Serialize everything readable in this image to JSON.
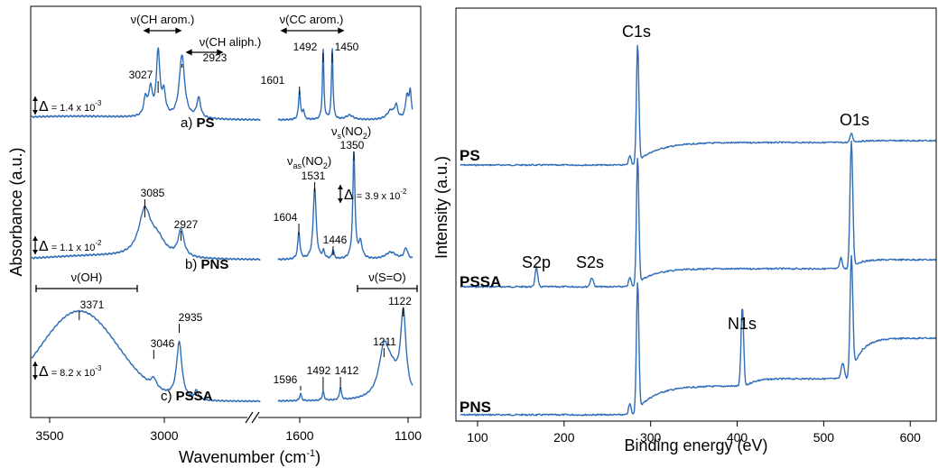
{
  "chart_data": [
    {
      "type": "line",
      "xlabel_main": "Wavenumber (cm",
      "xlabel_sup": "-1",
      "xlabel_end": ")",
      "ylabel": "Absorbance (a.u.)",
      "x_breaks": [
        [
          3700,
          2500
        ],
        [
          1700,
          1080
        ]
      ],
      "tick_labels": [
        "3500",
        "3000",
        "1600",
        "1100"
      ],
      "series": [
        {
          "name": "a) PS",
          "name_prefix": "a) ",
          "name_bold": "PS",
          "scale_pre": "= 1.4 x 10",
          "scale_exp": "-3",
          "peaks": [
            {
              "x": 3027,
              "label": "3027"
            },
            {
              "x": 2923,
              "label": "2923"
            },
            {
              "x": 1601,
              "label": "1601"
            },
            {
              "x": 1492,
              "label": "1492"
            },
            {
              "x": 1450,
              "label": "1450"
            }
          ]
        },
        {
          "name": "b) PNS",
          "name_prefix": "b) ",
          "name_bold": "PNS",
          "scale_pre": "= 1.1 x 10",
          "scale_exp": "-2",
          "peaks": [
            {
              "x": 3085,
              "label": "3085"
            },
            {
              "x": 2927,
              "label": "2927"
            },
            {
              "x": 1604,
              "label": "1604"
            },
            {
              "x": 1531,
              "label": "1531"
            },
            {
              "x": 1446,
              "label": "1446"
            },
            {
              "x": 1350,
              "label": "1350"
            }
          ]
        },
        {
          "name": "c) PSSA",
          "name_prefix": "c) ",
          "name_bold": "PSSA",
          "scale_pre": "= 8.2 x 10",
          "scale_exp": "-3",
          "peaks": [
            {
              "x": 3371,
              "label": "3371"
            },
            {
              "x": 3046,
              "label": "3046"
            },
            {
              "x": 2935,
              "label": "2935"
            },
            {
              "x": 1596,
              "label": "1596"
            },
            {
              "x": 1492,
              "label": "1492"
            },
            {
              "x": 1412,
              "label": "1412"
            },
            {
              "x": 1211,
              "label": "1211"
            },
            {
              "x": 1122,
              "label": "1122"
            }
          ]
        }
      ],
      "annotations": {
        "ch_arom": "ν(CH arom.)",
        "ch_aliph": "ν(CH aliph.)",
        "cc_arom": "ν(CC arom.)",
        "oh": "ν(OH)",
        "so": "ν(S=O)",
        "nas_v": "ν",
        "nas_sub": "as",
        "nas_rest": "(NO",
        "nas_sub2": "2",
        "nas_end": ")",
        "ns_v": "ν",
        "ns_sub": "s",
        "ns_rest": "(NO",
        "ns_sub2": "2",
        "ns_end": ")",
        "pns_extra_scale_pre": "= 3.9 x 10",
        "pns_extra_scale_exp": "-2",
        "delta": "Δ"
      }
    },
    {
      "type": "line",
      "xlabel": "Binding energy (eV)",
      "ylabel": "Intensity (a.u.)",
      "xlim": [
        75,
        630
      ],
      "xticks": [
        100,
        200,
        300,
        400,
        500,
        600
      ],
      "series": [
        {
          "name": "PS",
          "peaks": [
            {
              "x": 285,
              "label": "C1s"
            },
            {
              "x": 532,
              "label": "O1s"
            }
          ]
        },
        {
          "name": "PSSA",
          "peaks": [
            {
              "x": 168,
              "label": "S2p"
            },
            {
              "x": 232,
              "label": "S2s"
            },
            {
              "x": 285,
              "label": ""
            },
            {
              "x": 532,
              "label": ""
            }
          ]
        },
        {
          "name": "PNS",
          "peaks": [
            {
              "x": 285,
              "label": ""
            },
            {
              "x": 406,
              "label": "N1s"
            },
            {
              "x": 532,
              "label": ""
            }
          ]
        }
      ]
    }
  ]
}
